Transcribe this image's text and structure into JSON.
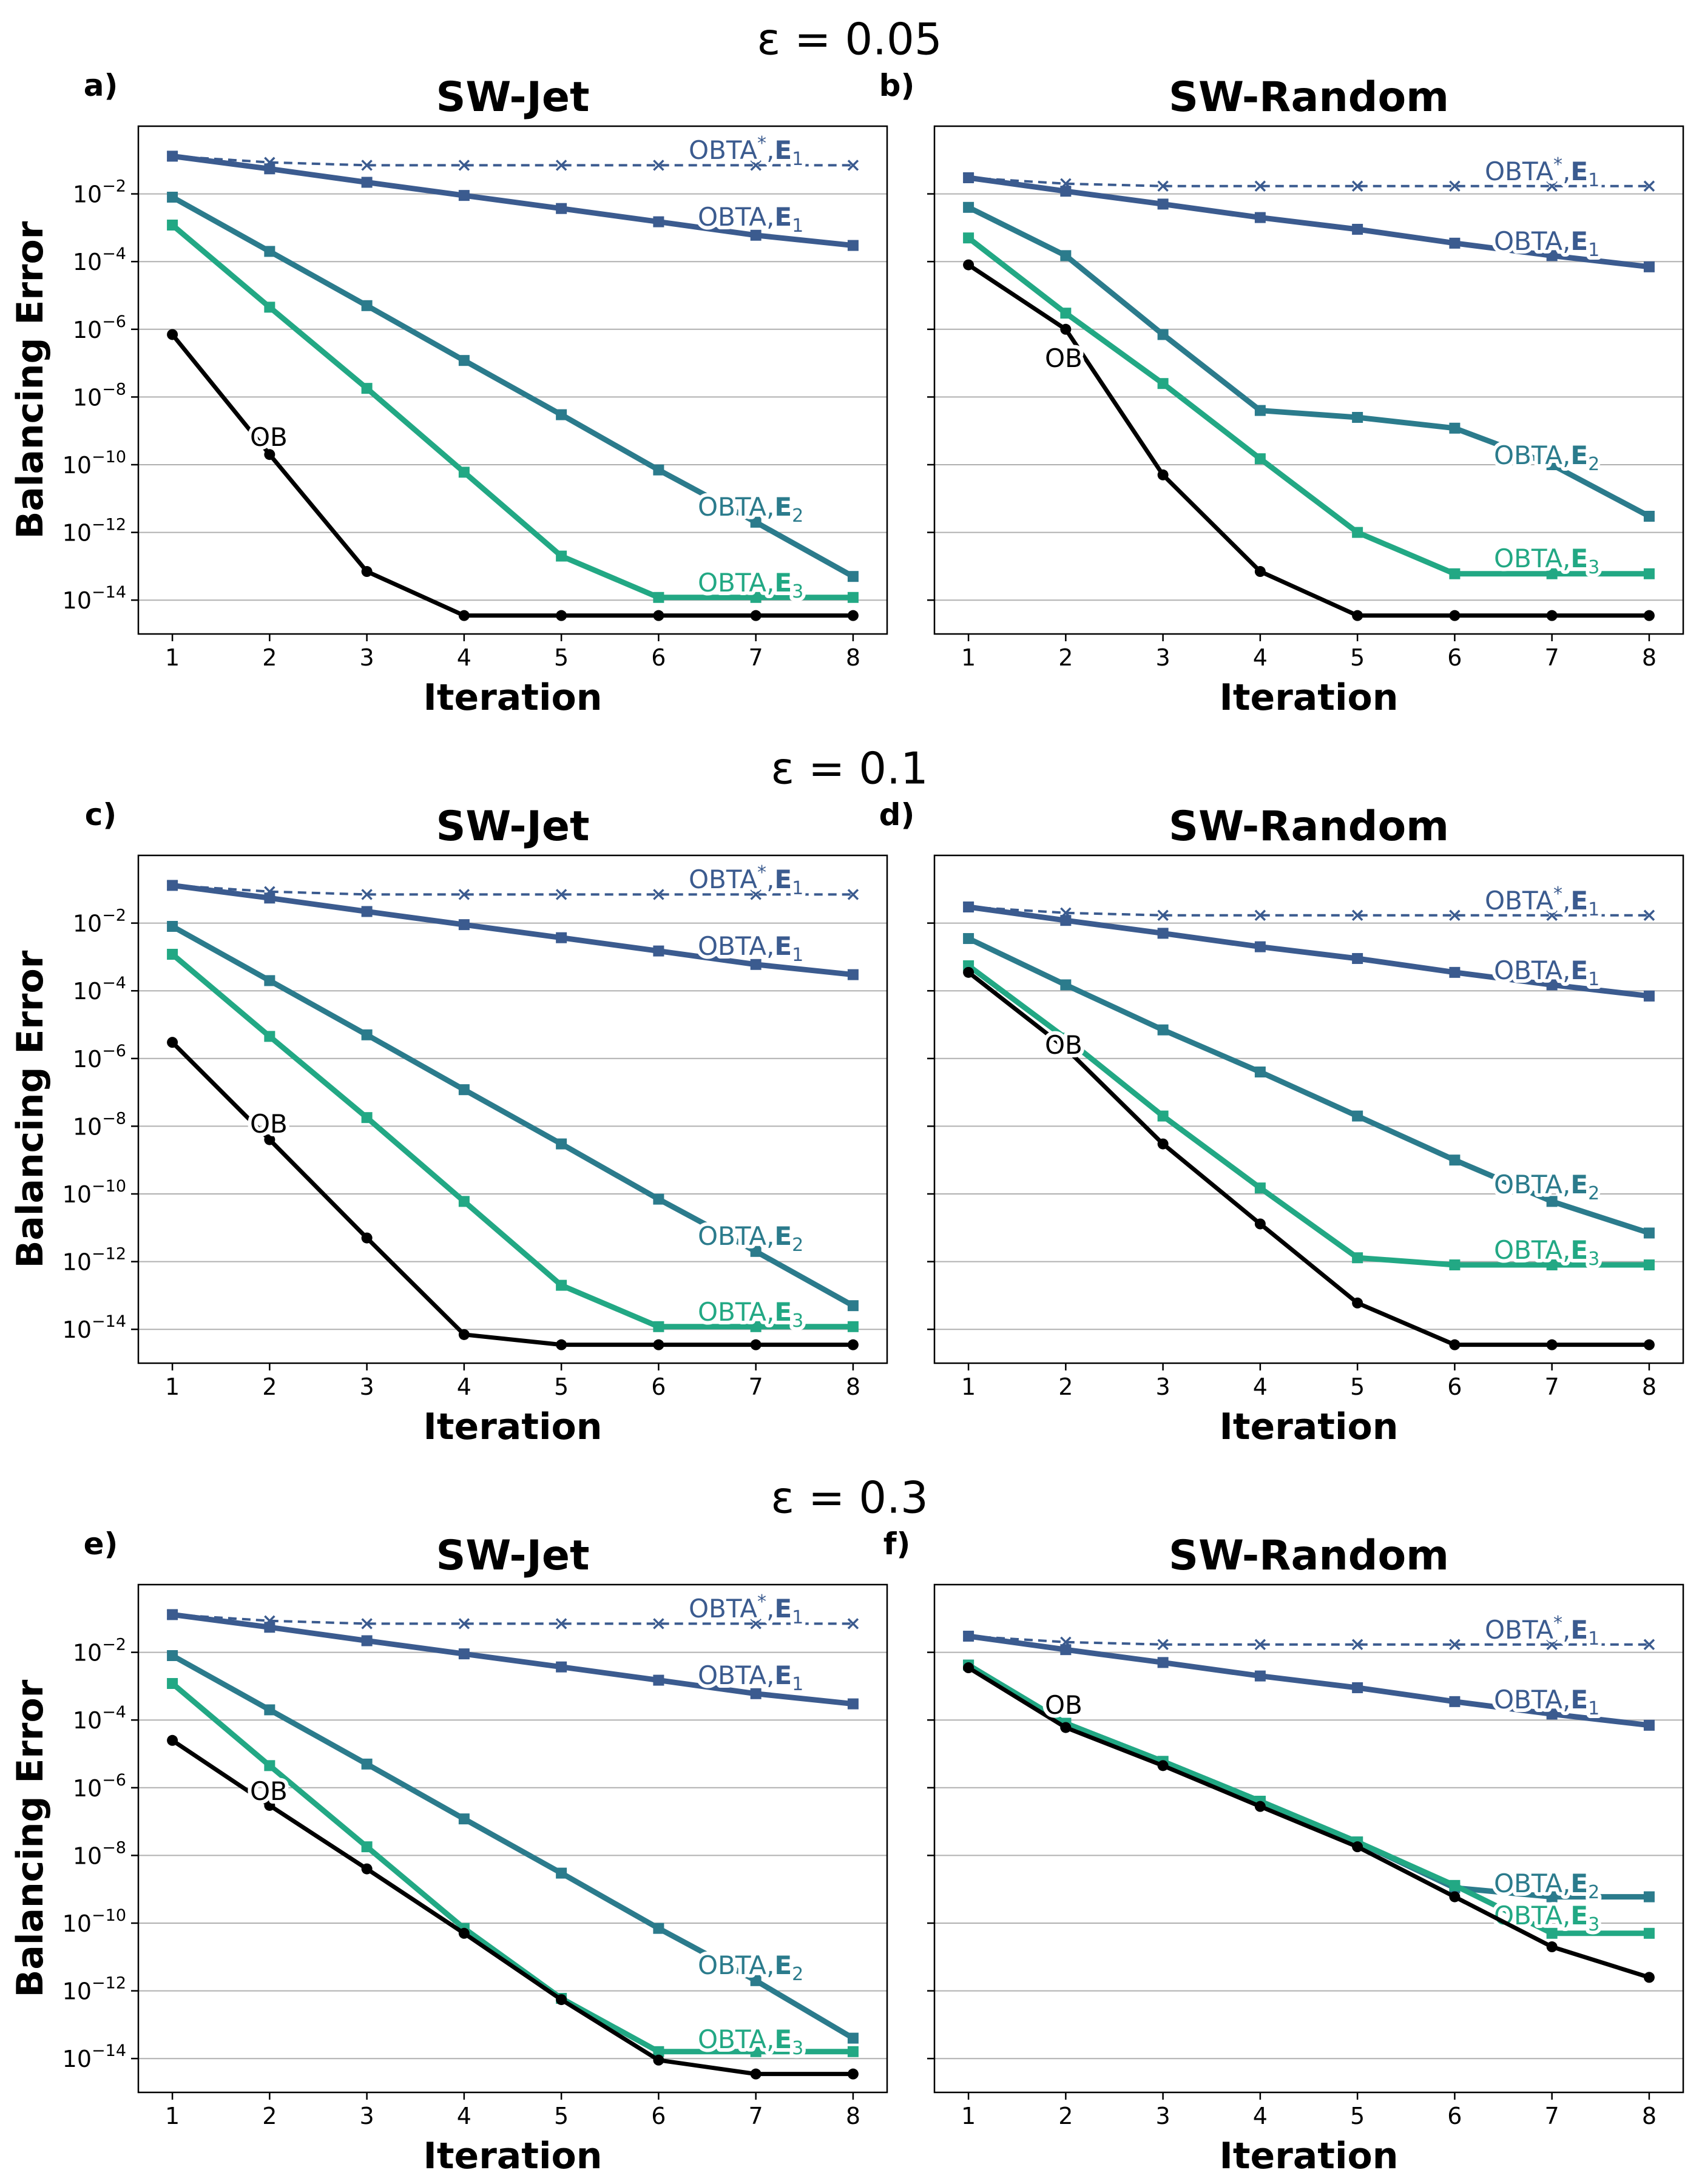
{
  "chart_data": {
    "type": "line",
    "yscale": "log",
    "x": [
      1,
      2,
      3,
      4,
      5,
      6,
      7,
      8
    ],
    "xlabel": "Iteration",
    "ylabel": "Balancing Error",
    "ylim_exponents": [
      -15,
      0
    ],
    "ytick_exponents": [
      -14,
      -12,
      -10,
      -8,
      -6,
      -4,
      -2
    ],
    "ytick_base": "10",
    "grid": "horizontal",
    "colors": {
      "OBTA*,E1": "#3b5b8f",
      "OBTA,E1": "#3b5b8f",
      "OBTA,E2": "#2b7b8c",
      "OBTA,E3": "#22a884",
      "OB": "#000000"
    },
    "series_labels": {
      "obta_star_e1": {
        "prefix": "OBTA",
        "sup": "*",
        "bold": "E",
        "sub": "1"
      },
      "obta_e1": {
        "prefix": "OBTA,",
        "bold": "E",
        "sub": "1"
      },
      "obta_e2": {
        "prefix": "OBTA,",
        "bold": "E",
        "sub": "2"
      },
      "obta_e3": {
        "prefix": "OBTA,",
        "bold": "E",
        "sub": "3"
      },
      "ob": "OB"
    },
    "rows": [
      {
        "title": "ε = 0.05"
      },
      {
        "title": "ε = 0.1"
      },
      {
        "title": "ε = 0.3"
      }
    ],
    "panels": [
      {
        "letter": "a)",
        "title": "SW-Jet",
        "row": 0,
        "series": [
          {
            "name": "OBTA*,E1",
            "key": "obta_star_e1",
            "style": "dashed",
            "marker": "x",
            "values": [
              0.13,
              0.085,
              0.07,
              0.07,
              0.07,
              0.07,
              0.07,
              0.07
            ]
          },
          {
            "name": "OBTA,E1",
            "key": "obta_e1",
            "style": "solid",
            "marker": "square",
            "values": [
              0.13,
              0.055,
              0.022,
              0.009,
              0.0037,
              0.0015,
              0.0006,
              0.0003
            ]
          },
          {
            "name": "OBTA,E2",
            "key": "obta_e2",
            "style": "solid",
            "marker": "square",
            "values": [
              0.008,
              0.0002,
              5e-06,
              1.2e-07,
              3e-09,
              7e-11,
              2e-12,
              5e-14
            ]
          },
          {
            "name": "OBTA,E3",
            "key": "obta_e3",
            "style": "solid",
            "marker": "square",
            "values": [
              0.0012,
              4.5e-06,
              1.8e-08,
              6e-11,
              2e-13,
              1.2e-14,
              1.2e-14,
              1.2e-14
            ]
          },
          {
            "name": "OB",
            "key": "ob",
            "style": "solid",
            "marker": "circle",
            "values": [
              7e-07,
              2e-10,
              7e-14,
              3.5e-15,
              3.5e-15,
              3.5e-15,
              3.5e-15,
              3.5e-15
            ]
          }
        ]
      },
      {
        "letter": "b)",
        "title": "SW-Random",
        "row": 0,
        "series": [
          {
            "name": "OBTA*,E1",
            "key": "obta_star_e1",
            "style": "dashed",
            "marker": "x",
            "values": [
              0.03,
              0.02,
              0.017,
              0.017,
              0.017,
              0.017,
              0.017,
              0.017
            ]
          },
          {
            "name": "OBTA,E1",
            "key": "obta_e1",
            "style": "solid",
            "marker": "square",
            "values": [
              0.03,
              0.012,
              0.005,
              0.002,
              0.0009,
              0.00035,
              0.00015,
              7e-05
            ]
          },
          {
            "name": "OBTA,E2",
            "key": "obta_e2",
            "style": "solid",
            "marker": "square",
            "values": [
              0.004,
              0.00015,
              7e-07,
              4e-09,
              2.5e-09,
              1.2e-09,
              1e-10,
              3e-12
            ]
          },
          {
            "name": "OBTA,E3",
            "key": "obta_e3",
            "style": "solid",
            "marker": "square",
            "values": [
              0.0005,
              3e-06,
              2.5e-08,
              1.5e-10,
              1e-12,
              6e-14,
              6e-14,
              6e-14
            ]
          },
          {
            "name": "OB",
            "key": "ob",
            "style": "solid",
            "marker": "circle",
            "values": [
              8e-05,
              1e-06,
              5e-11,
              7e-14,
              3.5e-15,
              3.5e-15,
              3.5e-15,
              3.5e-15
            ]
          }
        ]
      },
      {
        "letter": "c)",
        "title": "SW-Jet",
        "row": 1,
        "series": [
          {
            "name": "OBTA*,E1",
            "key": "obta_star_e1",
            "style": "dashed",
            "marker": "x",
            "values": [
              0.13,
              0.085,
              0.07,
              0.07,
              0.07,
              0.07,
              0.07,
              0.07
            ]
          },
          {
            "name": "OBTA,E1",
            "key": "obta_e1",
            "style": "solid",
            "marker": "square",
            "values": [
              0.13,
              0.055,
              0.022,
              0.009,
              0.0037,
              0.0015,
              0.0006,
              0.0003
            ]
          },
          {
            "name": "OBTA,E2",
            "key": "obta_e2",
            "style": "solid",
            "marker": "square",
            "values": [
              0.008,
              0.0002,
              5e-06,
              1.2e-07,
              3e-09,
              7e-11,
              2e-12,
              5e-14
            ]
          },
          {
            "name": "OBTA,E3",
            "key": "obta_e3",
            "style": "solid",
            "marker": "square",
            "values": [
              0.0012,
              4.5e-06,
              1.8e-08,
              6e-11,
              2e-13,
              1.2e-14,
              1.2e-14,
              1.2e-14
            ]
          },
          {
            "name": "OB",
            "key": "ob",
            "style": "solid",
            "marker": "circle",
            "values": [
              3e-06,
              4e-09,
              5e-12,
              7e-15,
              3.5e-15,
              3.5e-15,
              3.5e-15,
              3.5e-15
            ]
          }
        ]
      },
      {
        "letter": "d)",
        "title": "SW-Random",
        "row": 1,
        "series": [
          {
            "name": "OBTA*,E1",
            "key": "obta_star_e1",
            "style": "dashed",
            "marker": "x",
            "values": [
              0.03,
              0.02,
              0.017,
              0.017,
              0.017,
              0.017,
              0.017,
              0.017
            ]
          },
          {
            "name": "OBTA,E1",
            "key": "obta_e1",
            "style": "solid",
            "marker": "square",
            "values": [
              0.03,
              0.012,
              0.005,
              0.002,
              0.0009,
              0.00035,
              0.00015,
              7e-05
            ]
          },
          {
            "name": "OBTA,E2",
            "key": "obta_e2",
            "style": "solid",
            "marker": "square",
            "values": [
              0.0035,
              0.00015,
              7e-06,
              4e-07,
              2e-08,
              1e-09,
              6e-11,
              7e-12
            ]
          },
          {
            "name": "OBTA,E3",
            "key": "obta_e3",
            "style": "solid",
            "marker": "square",
            "values": [
              0.00055,
              4e-06,
              2e-08,
              1.5e-10,
              1.3e-12,
              8e-13,
              8e-13,
              8e-13
            ]
          },
          {
            "name": "OB",
            "key": "ob",
            "style": "solid",
            "marker": "circle",
            "values": [
              0.00035,
              2e-06,
              3e-09,
              1.3e-11,
              6e-14,
              3.5e-15,
              3.5e-15,
              3.5e-15
            ]
          }
        ]
      },
      {
        "letter": "e)",
        "title": "SW-Jet",
        "row": 2,
        "series": [
          {
            "name": "OBTA*,E1",
            "key": "obta_star_e1",
            "style": "dashed",
            "marker": "x",
            "values": [
              0.13,
              0.085,
              0.07,
              0.07,
              0.07,
              0.07,
              0.07,
              0.07
            ]
          },
          {
            "name": "OBTA,E1",
            "key": "obta_e1",
            "style": "solid",
            "marker": "square",
            "values": [
              0.13,
              0.055,
              0.022,
              0.009,
              0.0037,
              0.0015,
              0.0006,
              0.0003
            ]
          },
          {
            "name": "OBTA,E2",
            "key": "obta_e2",
            "style": "solid",
            "marker": "square",
            "values": [
              0.008,
              0.0002,
              5e-06,
              1.2e-07,
              3e-09,
              7e-11,
              2e-12,
              4e-14
            ]
          },
          {
            "name": "OBTA,E3",
            "key": "obta_e3",
            "style": "solid",
            "marker": "square",
            "values": [
              0.0012,
              4.5e-06,
              1.8e-08,
              7e-11,
              6e-13,
              1.6e-14,
              1.6e-14,
              1.6e-14
            ]
          },
          {
            "name": "OB",
            "key": "ob",
            "style": "solid",
            "marker": "circle",
            "values": [
              2.5e-05,
              3e-07,
              4e-09,
              5e-11,
              5.5e-13,
              9e-15,
              3.5e-15,
              3.5e-15
            ]
          }
        ]
      },
      {
        "letter": "f)",
        "title": "SW-Random",
        "row": 2,
        "series": [
          {
            "name": "OBTA*,E1",
            "key": "obta_star_e1",
            "style": "dashed",
            "marker": "x",
            "values": [
              0.03,
              0.02,
              0.017,
              0.017,
              0.017,
              0.017,
              0.017,
              0.017
            ]
          },
          {
            "name": "OBTA,E1",
            "key": "obta_e1",
            "style": "solid",
            "marker": "square",
            "values": [
              0.03,
              0.012,
              0.005,
              0.002,
              0.0009,
              0.00035,
              0.00015,
              7e-05
            ]
          },
          {
            "name": "OBTA,E2",
            "key": "obta_e2",
            "style": "solid",
            "marker": "square",
            "values": [
              0.0042,
              8e-05,
              6e-06,
              4e-07,
              2.5e-08,
              1.1e-09,
              6e-10,
              6e-10
            ]
          },
          {
            "name": "OBTA,E3",
            "key": "obta_e3",
            "style": "solid",
            "marker": "square",
            "values": [
              0.0042,
              8e-05,
              6e-06,
              4e-07,
              2.5e-08,
              1.3e-09,
              5e-11,
              5e-11
            ]
          },
          {
            "name": "OB",
            "key": "ob",
            "style": "solid",
            "marker": "circle",
            "values": [
              0.0035,
              6e-05,
              4.5e-06,
              2.8e-07,
              1.8e-08,
              6e-10,
              2e-11,
              2.5e-12
            ]
          }
        ]
      }
    ]
  }
}
